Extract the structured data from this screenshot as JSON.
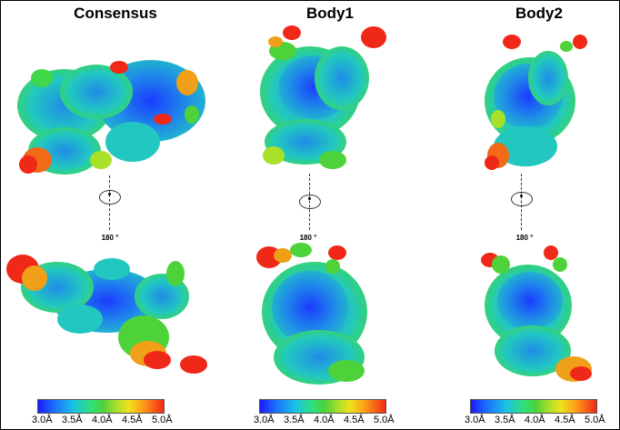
{
  "columns": [
    {
      "title": "Consensus",
      "rotation_label": "180 °",
      "ticks": [
        "3.0Å",
        "3.5Å",
        "4.0Å",
        "4.5Å",
        "5.0Å"
      ]
    },
    {
      "title": "Body1",
      "rotation_label": "180 °",
      "ticks": [
        "3.0Å",
        "3.5Å",
        "4.0Å",
        "4.5Å",
        "5.0Å"
      ]
    },
    {
      "title": "Body2",
      "rotation_label": "180 °",
      "ticks": [
        "3.0Å",
        "3.5Å",
        "4.0Å",
        "4.5Å",
        "5.0Å"
      ]
    }
  ],
  "colors": {
    "low": "#1a3cff",
    "mid_low": "#19c3e6",
    "mid": "#3fd84a",
    "mid_high": "#f0e21e",
    "high": "#f02818"
  }
}
